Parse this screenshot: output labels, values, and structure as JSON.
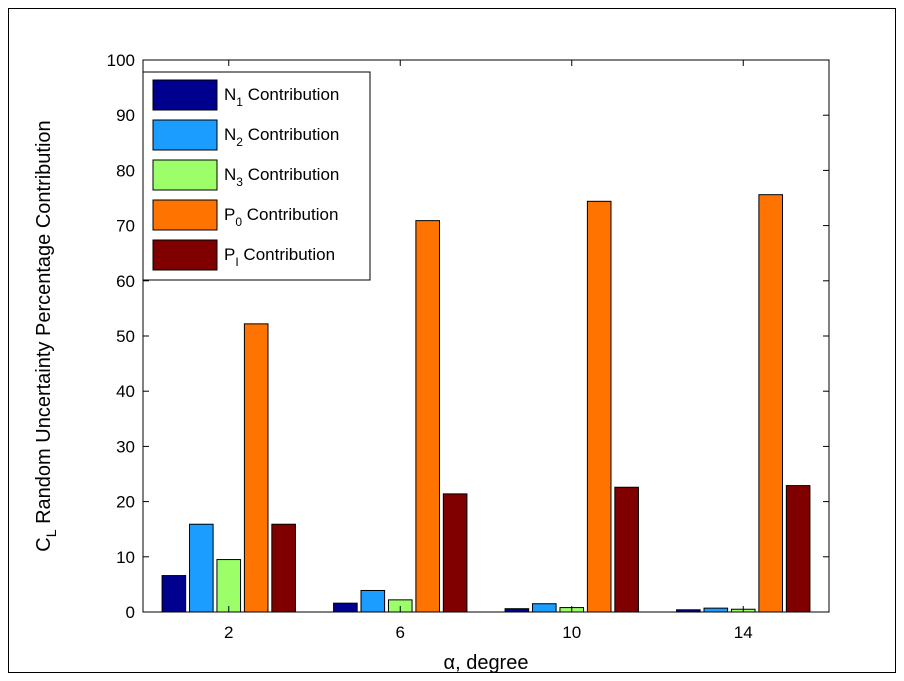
{
  "chart_data": {
    "type": "bar",
    "categories": [
      "2",
      "6",
      "10",
      "14"
    ],
    "series": [
      {
        "name": "N1 Contribution",
        "name_main": "N",
        "name_sub": "1",
        "name_rest": " Contribution",
        "color": "#00008f",
        "values": [
          6.6,
          1.6,
          0.6,
          0.4
        ]
      },
      {
        "name": "N2 Contribution",
        "name_main": "N",
        "name_sub": "2",
        "name_rest": " Contribution",
        "color": "#1a9dff",
        "values": [
          15.9,
          3.9,
          1.5,
          0.7
        ]
      },
      {
        "name": "N3 Contribution",
        "name_main": "N",
        "name_sub": "3",
        "name_rest": " Contribution",
        "color": "#9cff6a",
        "values": [
          9.5,
          2.2,
          0.8,
          0.5
        ]
      },
      {
        "name": "P0 Contribution",
        "name_main": "P",
        "name_sub": "0",
        "name_rest": " Contribution",
        "color": "#ff7400",
        "values": [
          52.2,
          70.9,
          74.4,
          75.6
        ]
      },
      {
        "name": "PI Contribution",
        "name_main": "P",
        "name_sub": "I",
        "name_rest": " Contribution",
        "color": "#800000",
        "values": [
          15.9,
          21.4,
          22.6,
          22.9
        ]
      }
    ],
    "yticks": [
      "0",
      "10",
      "20",
      "30",
      "40",
      "50",
      "60",
      "70",
      "80",
      "90",
      "100"
    ],
    "ylim": [
      0,
      100
    ],
    "xlabel": "α, degree",
    "ylabel_main": "C",
    "ylabel_sub": "L",
    "ylabel_rest": " Random Uncertainty Percentage Contribution",
    "legend_position": "top-left",
    "grid": false
  }
}
